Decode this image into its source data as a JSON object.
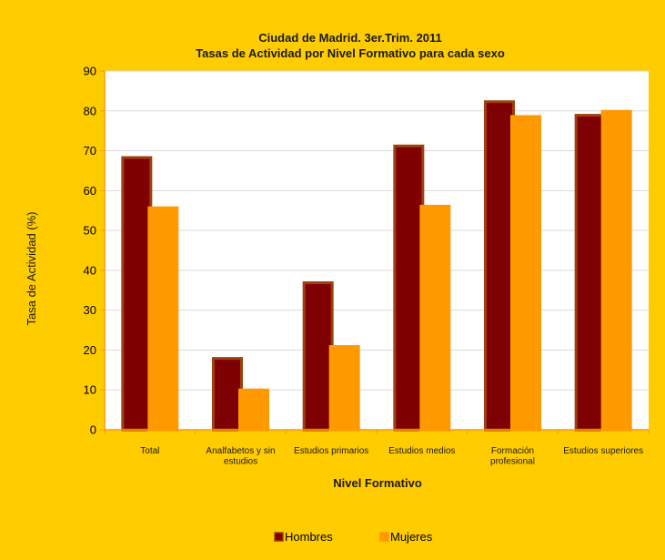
{
  "chart_data": {
    "type": "bar",
    "title": "Ciudad de Madrid. 3er.Trim. 2011",
    "subtitle": "Tasas de Actividad por Nivel Formativo para cada sexo",
    "xlabel": "Nivel Formativo",
    "ylabel": "Tasa de Actividad (%)",
    "ylim": [
      0,
      90
    ],
    "yticks": [
      0,
      10,
      20,
      30,
      40,
      50,
      60,
      70,
      80,
      90
    ],
    "grid": true,
    "legend_position": "bottom",
    "categories": [
      [
        "Total"
      ],
      [
        "Analfabetos y sin",
        "estudios"
      ],
      [
        "Estudios primarios"
      ],
      [
        "Estudios medios"
      ],
      [
        "Formación",
        "profesional"
      ],
      [
        "Estudios superiores"
      ]
    ],
    "series": [
      {
        "name": "Hombres",
        "color": "#7F0000",
        "edge": "#A0400A",
        "values": [
          68.3,
          17.9,
          36.9,
          71.2,
          82.3,
          78.9
        ]
      },
      {
        "name": "Mujeres",
        "color": "#FF9900",
        "edge": "#FF9900",
        "values": [
          55.7,
          10.0,
          20.9,
          56.1,
          78.6,
          79.9
        ]
      }
    ]
  }
}
